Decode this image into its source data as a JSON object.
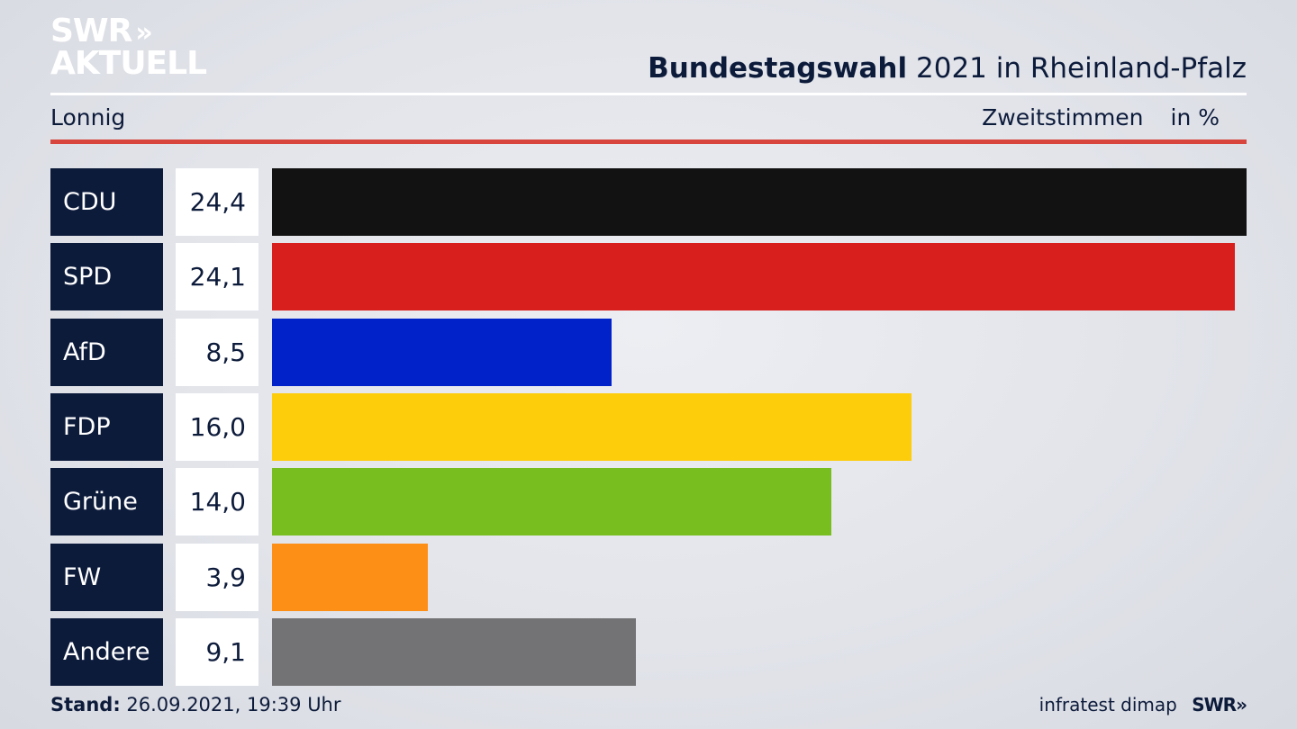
{
  "brand": {
    "line1": "SWR",
    "arrows": "»",
    "line2": "AKTUELL"
  },
  "header": {
    "title_bold": "Bundestagswahl",
    "title_rest": "2021 in Rheinland-Pfalz",
    "place": "Lonnig",
    "measure": "Zweitstimmen",
    "unit": "in %"
  },
  "chart_data": {
    "type": "bar",
    "orientation": "horizontal",
    "title": "Bundestagswahl 2021 in Rheinland-Pfalz",
    "xlabel": "Zweitstimmen in %",
    "categories": [
      "CDU",
      "SPD",
      "AfD",
      "FDP",
      "Grüne",
      "FW",
      "Andere"
    ],
    "values": [
      24.4,
      24.1,
      8.5,
      16.0,
      14.0,
      3.9,
      9.1
    ],
    "value_labels": [
      "24,4",
      "24,1",
      "8,5",
      "16,0",
      "14,0",
      "3,9",
      "9,1"
    ],
    "colors": [
      "#121212",
      "#d91e1e",
      "#0121c9",
      "#fdcc0a",
      "#77be1e",
      "#fd8f17",
      "#737375"
    ],
    "xlim": [
      0,
      24.4
    ],
    "grid": false
  },
  "footer": {
    "stand_label": "Stand:",
    "stand_value": "26.09.2021, 19:39 Uhr",
    "source": "infratest dimap",
    "broadcaster": "SWR",
    "broadcaster_arrows": "»"
  }
}
